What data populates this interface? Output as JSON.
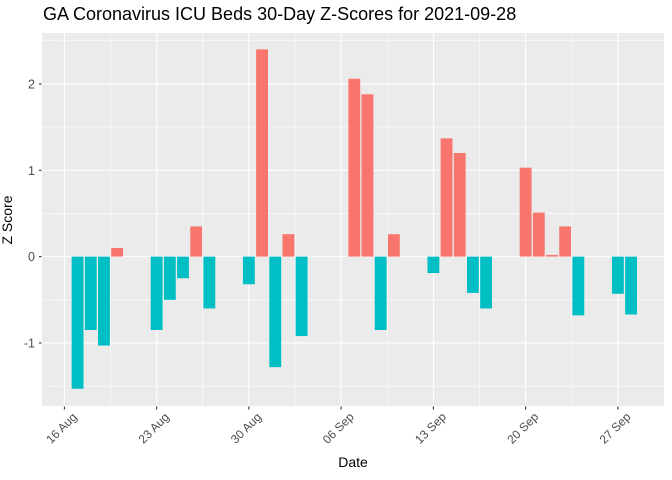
{
  "chart_data": {
    "type": "bar",
    "title": "GA Coronavirus ICU Beds 30-Day Z-Scores for 2021-09-28",
    "xlabel": "Date",
    "ylabel": "Z Score",
    "x_axis": {
      "tick_labels": [
        "16 Aug",
        "23 Aug",
        "30 Aug",
        "06 Sep",
        "13 Sep",
        "20 Sep",
        "27 Sep"
      ],
      "tick_days": [
        0,
        7,
        14,
        21,
        28,
        35,
        42
      ],
      "minor_grid_days": [
        3.5,
        10.5,
        17.5,
        24.5,
        31.5,
        38.5
      ],
      "domain_days": [
        -1.7,
        45.5
      ],
      "origin_label": "16 Aug 2021"
    },
    "y_axis": {
      "tick_labels": [
        "-1",
        "0",
        "1",
        "2"
      ],
      "tick_values": [
        -1,
        0,
        1,
        2
      ],
      "minor_grid_values": [
        -1.5,
        -0.5,
        0.5,
        1.5,
        2.5
      ],
      "domain": [
        -1.73,
        2.59
      ]
    },
    "bar_width_days": 0.9,
    "grid": "on",
    "legend": "none",
    "color_rule": "positive bars salmon, negative bars teal",
    "points": [
      {
        "date": "17 Aug",
        "day": 1,
        "value": -1.53
      },
      {
        "date": "18 Aug",
        "day": 2,
        "value": -0.85
      },
      {
        "date": "19 Aug",
        "day": 3,
        "value": -1.03
      },
      {
        "date": "20 Aug",
        "day": 4,
        "value": 0.1
      },
      {
        "date": "23 Aug",
        "day": 7,
        "value": -0.85
      },
      {
        "date": "24 Aug",
        "day": 8,
        "value": -0.5
      },
      {
        "date": "25 Aug",
        "day": 9,
        "value": -0.25
      },
      {
        "date": "26 Aug",
        "day": 10,
        "value": 0.35
      },
      {
        "date": "27 Aug",
        "day": 11,
        "value": -0.6
      },
      {
        "date": "30 Aug",
        "day": 14,
        "value": -0.32
      },
      {
        "date": "31 Aug",
        "day": 15,
        "value": 2.4
      },
      {
        "date": "01 Sep",
        "day": 16,
        "value": -1.28
      },
      {
        "date": "02 Sep",
        "day": 17,
        "value": 0.26
      },
      {
        "date": "03 Sep",
        "day": 18,
        "value": -0.92
      },
      {
        "date": "07 Sep",
        "day": 22,
        "value": 2.06
      },
      {
        "date": "08 Sep",
        "day": 23,
        "value": 1.88
      },
      {
        "date": "09 Sep",
        "day": 24,
        "value": -0.85
      },
      {
        "date": "10 Sep",
        "day": 25,
        "value": 0.26
      },
      {
        "date": "13 Sep",
        "day": 28,
        "value": -0.19
      },
      {
        "date": "14 Sep",
        "day": 29,
        "value": 1.37
      },
      {
        "date": "15 Sep",
        "day": 30,
        "value": 1.2
      },
      {
        "date": "16 Sep",
        "day": 31,
        "value": -0.42
      },
      {
        "date": "17 Sep",
        "day": 32,
        "value": -0.6
      },
      {
        "date": "20 Sep",
        "day": 35,
        "value": 1.03
      },
      {
        "date": "21 Sep",
        "day": 36,
        "value": 0.51
      },
      {
        "date": "22 Sep",
        "day": 37,
        "value": 0.02
      },
      {
        "date": "23 Sep",
        "day": 38,
        "value": 0.35
      },
      {
        "date": "24 Sep",
        "day": 39,
        "value": -0.68
      },
      {
        "date": "27 Sep",
        "day": 42,
        "value": -0.43
      },
      {
        "date": "28 Sep",
        "day": 43,
        "value": -0.67
      }
    ],
    "colors": {
      "positive_bar": "#F8766D",
      "negative_bar": "#00BFC4",
      "panel_background": "#EBEBEB",
      "gridline": "#FFFFFF",
      "tick_mark": "#333333",
      "tick_label_text": "#4D4D4D",
      "title_text": "#000000",
      "outer_background": "#FFFFFF"
    }
  }
}
